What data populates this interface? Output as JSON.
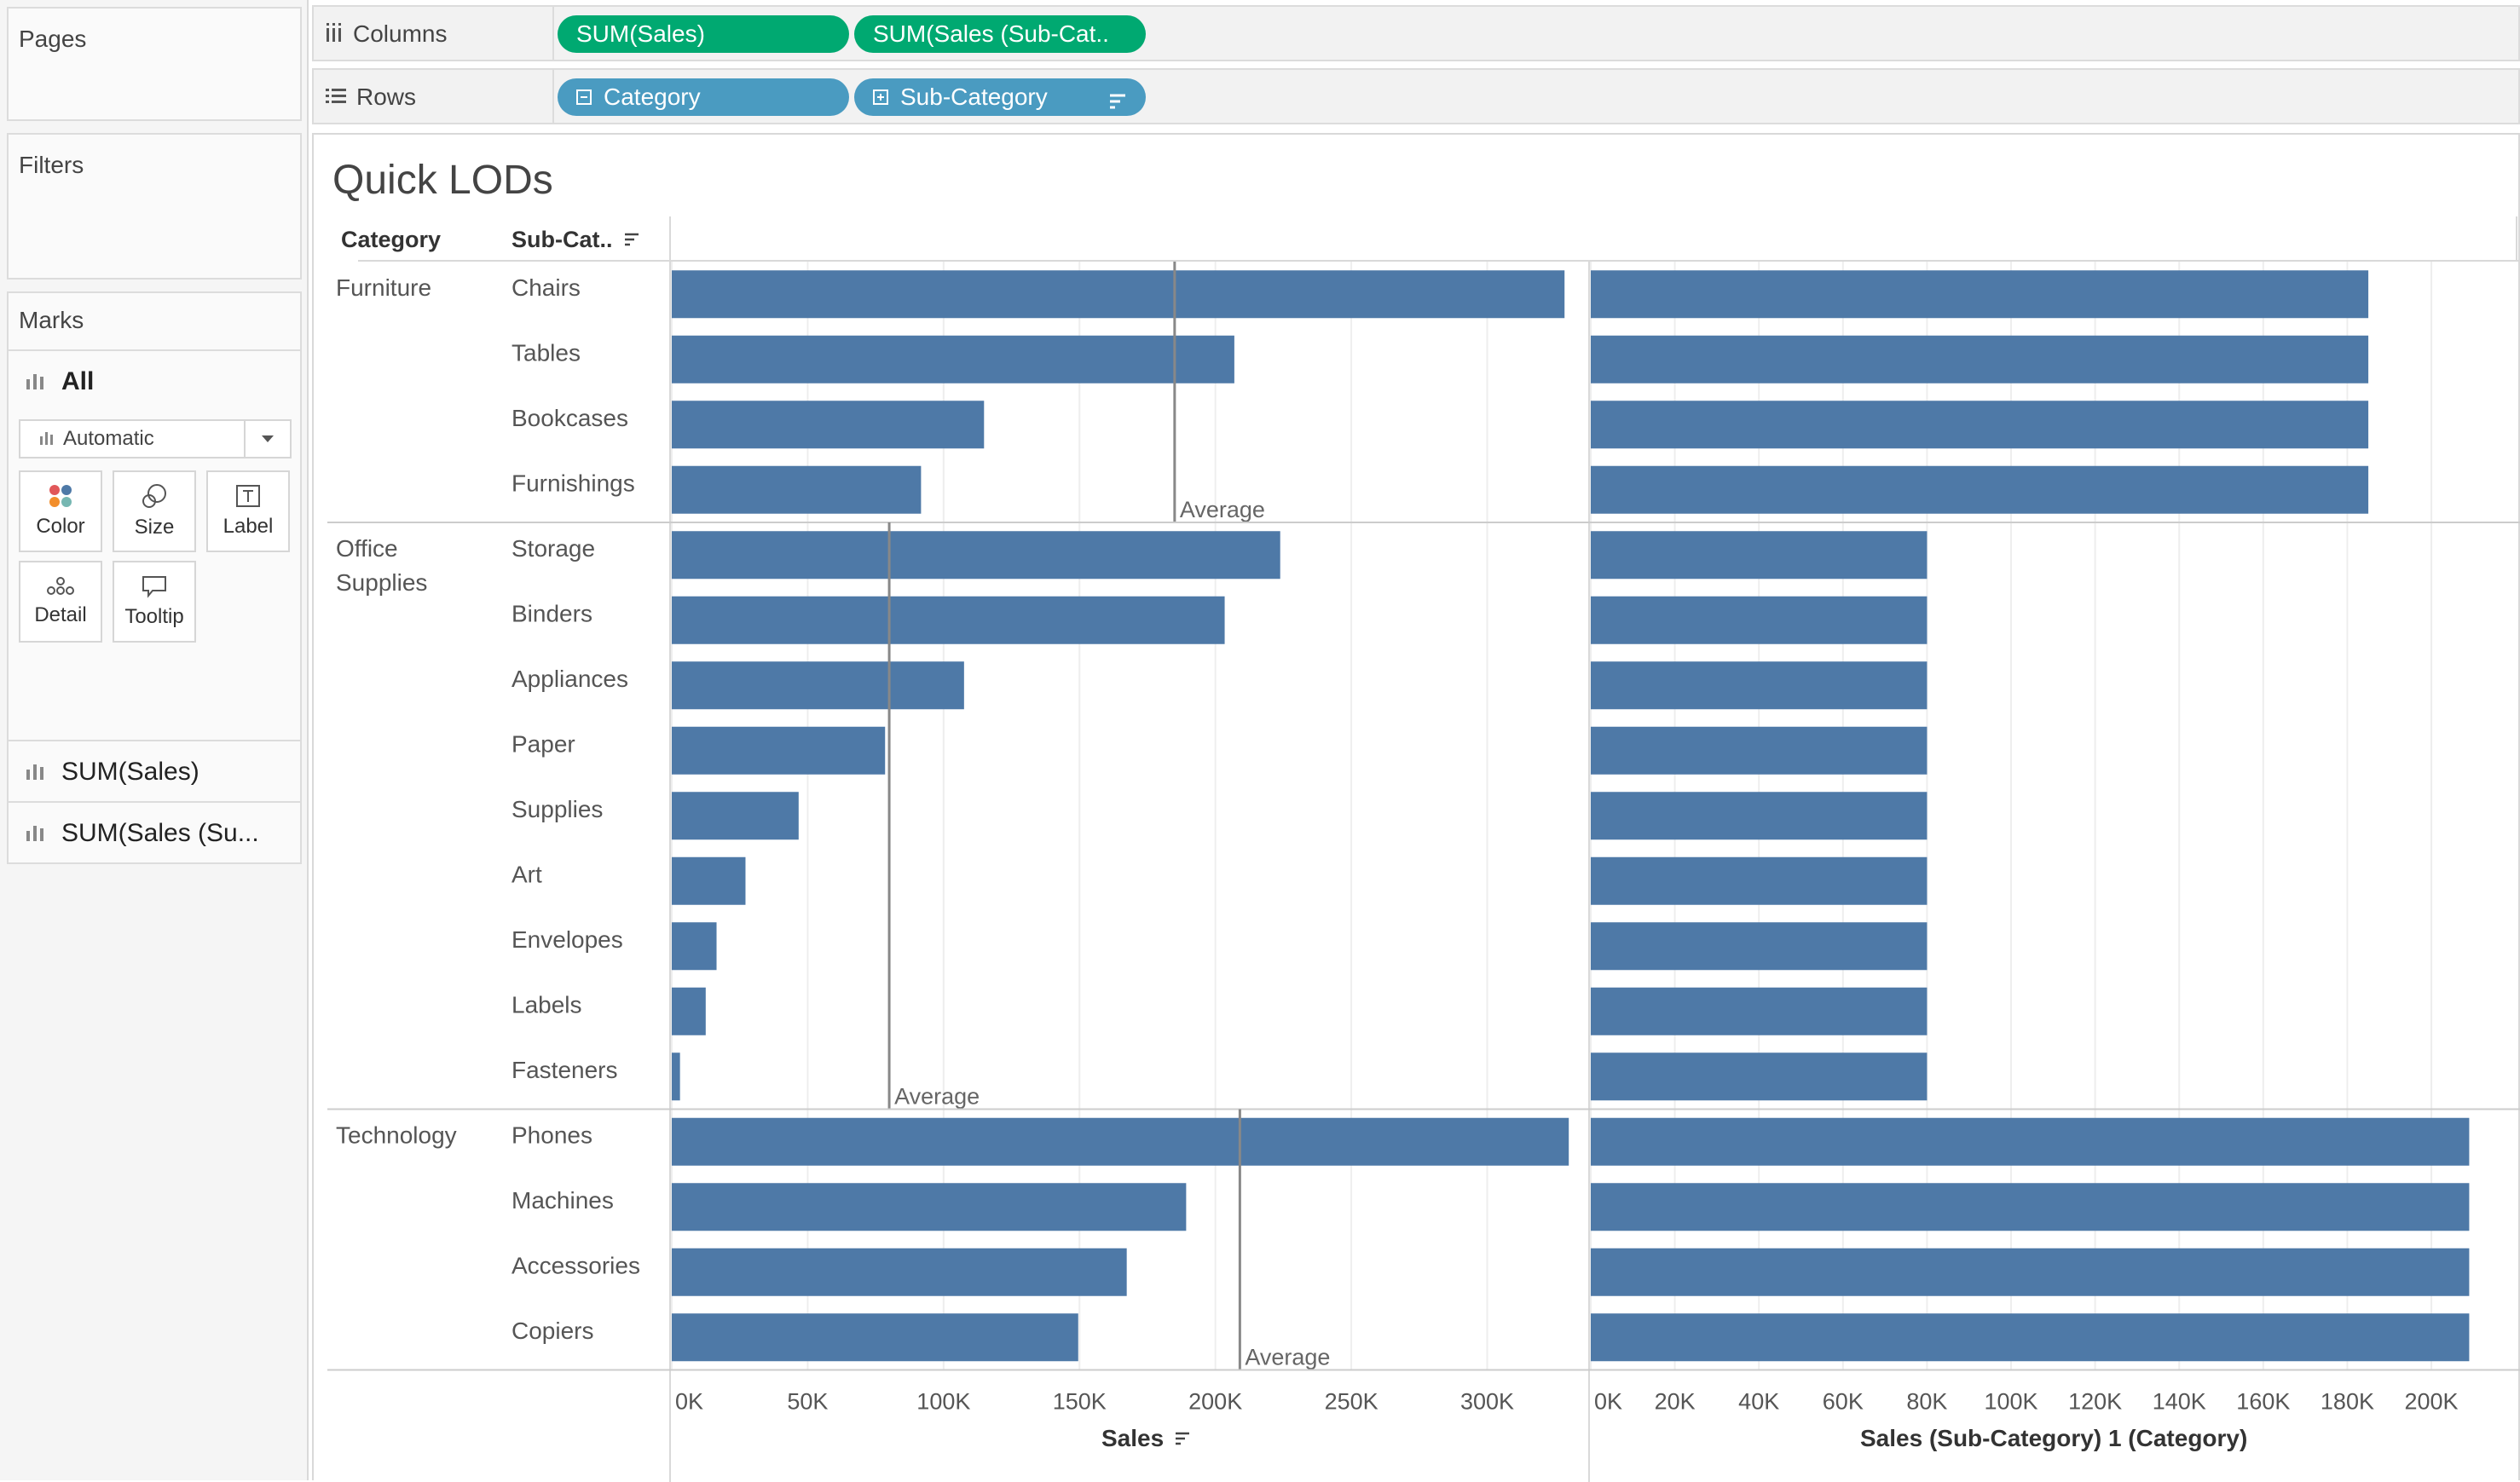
{
  "sidebar": {
    "pages_title": "Pages",
    "filters_title": "Filters",
    "marks": {
      "title": "Marks",
      "all_label": "All",
      "mark_type": "Automatic",
      "buttons": [
        "Color",
        "Size",
        "Label",
        "Detail",
        "Tooltip"
      ],
      "measures": [
        "SUM(Sales)",
        "SUM(Sales (Su..."
      ]
    }
  },
  "shelves": {
    "columns": {
      "label": "Columns",
      "pills": [
        "SUM(Sales)",
        "SUM(Sales (Sub-Cat.."
      ]
    },
    "rows": {
      "label": "Rows",
      "pills": [
        "Category",
        "Sub-Category"
      ]
    }
  },
  "view": {
    "title": "Quick LODs",
    "header_category": "Category",
    "header_subcategory": "Sub-Cat.."
  },
  "colors": {
    "bar": "#4e79a7",
    "measure_pill": "#00a971",
    "dimension_pill": "#4a9bc1"
  },
  "chart_data": [
    {
      "type": "bar",
      "orientation": "horizontal",
      "xlabel": "Sales",
      "xlim": [
        0,
        345000
      ],
      "xticks": [
        "0K",
        "50K",
        "100K",
        "150K",
        "200K",
        "250K",
        "300K"
      ],
      "reference_line_label": "Average",
      "groups": [
        {
          "category": "Furniture",
          "average": 185000,
          "subcategories": [
            "Chairs",
            "Tables",
            "Bookcases",
            "Furnishings"
          ],
          "values": [
            328450,
            206966,
            114880,
            91705
          ]
        },
        {
          "category": "Office Supplies",
          "average": 80000,
          "subcategories": [
            "Storage",
            "Binders",
            "Appliances",
            "Paper",
            "Supplies",
            "Art",
            "Envelopes",
            "Labels",
            "Fasteners"
          ],
          "values": [
            223844,
            203413,
            107532,
            78479,
            46674,
            27119,
            16476,
            12486,
            3024
          ]
        },
        {
          "category": "Technology",
          "average": 209000,
          "subcategories": [
            "Phones",
            "Machines",
            "Accessories",
            "Copiers"
          ],
          "values": [
            330007,
            189239,
            167380,
            149528
          ]
        }
      ]
    },
    {
      "type": "bar",
      "orientation": "horizontal",
      "xlabel": "Sales (Sub-Category) 1 (Category)",
      "xlim": [
        0,
        215000
      ],
      "xticks": [
        "0K",
        "20K",
        "40K",
        "60K",
        "80K",
        "100K",
        "120K",
        "140K",
        "160K",
        "180K",
        "200K"
      ],
      "groups": [
        {
          "category": "Furniture",
          "value": 185000
        },
        {
          "category": "Office Supplies",
          "value": 80000
        },
        {
          "category": "Technology",
          "value": 209000
        }
      ]
    }
  ]
}
